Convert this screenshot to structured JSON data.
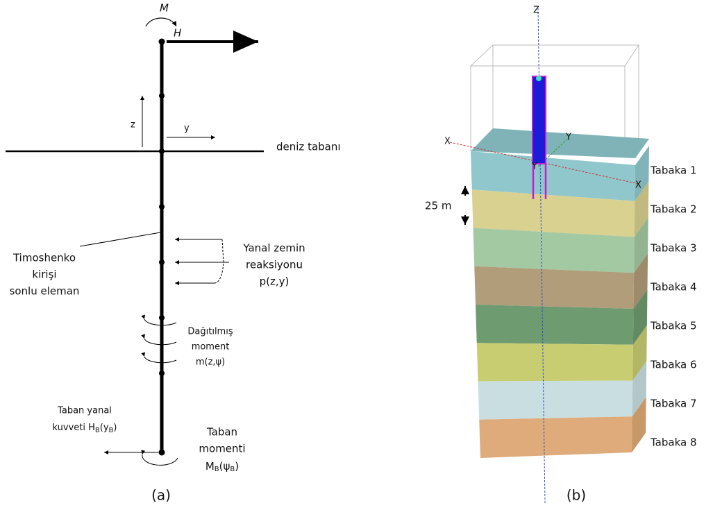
{
  "left": {
    "moment_top": "M",
    "force_top": "H",
    "axis_z": "z",
    "axis_y": "y",
    "seabed": "deniz tabanı",
    "element": [
      "Timoshenko",
      "kirişi",
      "sonlu eleman"
    ],
    "reaction": [
      "Yanal zemin",
      "reaksiyonu",
      "p(z,y)"
    ],
    "distributed": [
      "Dağıtılmış",
      "moment",
      "m(z,ψ)"
    ],
    "base_force": {
      "line1": "Taban yanal",
      "parts": [
        "kuvveti H",
        "B",
        "(y",
        "B",
        ")"
      ]
    },
    "base_moment": {
      "line1": "Taban",
      "line2": "momenti",
      "parts": [
        "M",
        "B",
        "(ψ",
        "B",
        ")"
      ]
    },
    "caption": "(a)"
  },
  "right": {
    "axis_z": "Z",
    "axis_x_left": "X",
    "axis_x_right": "X",
    "axis_y_top": "Y",
    "axis_y_center": "Y",
    "thickness": "25 m",
    "layers": [
      "Tabaka 1",
      "Tabaka 2",
      "Tabaka 3",
      "Tabaka 4",
      "Tabaka 5",
      "Tabaka 6",
      "Tabaka 7",
      "Tabaka 8"
    ],
    "caption": "(b)"
  }
}
